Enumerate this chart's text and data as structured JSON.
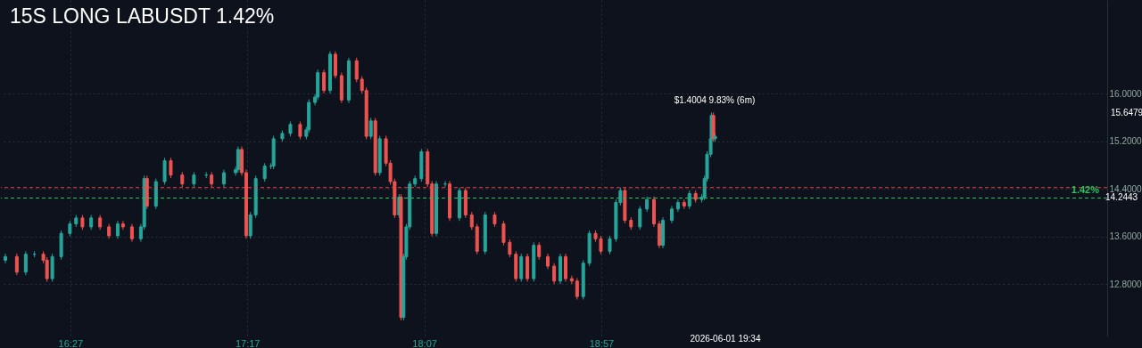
{
  "chart_data": {
    "type": "candlestick",
    "title": "15S LONG LABUSDT 1.42%",
    "x": [
      16.144,
      16.198,
      16.24,
      16.281,
      16.323,
      16.34,
      16.365,
      16.407,
      16.448,
      16.477,
      16.507,
      16.548,
      16.59,
      16.632,
      16.673,
      16.698,
      16.74,
      16.782,
      16.798,
      16.811,
      16.853,
      16.894,
      16.923,
      16.977,
      17.032,
      17.09,
      17.115,
      17.173,
      17.228,
      17.24,
      17.257,
      17.278,
      17.298,
      17.323,
      17.365,
      17.394,
      17.407,
      17.448,
      17.486,
      17.532,
      17.561,
      17.573,
      17.602,
      17.615,
      17.644,
      17.673,
      17.698,
      17.727,
      17.761,
      17.798,
      17.823,
      17.844,
      17.865,
      17.886,
      17.907,
      17.936,
      17.957,
      17.977,
      17.998,
      18.007,
      18.019,
      18.032,
      18.048,
      18.073,
      18.103,
      18.132,
      18.153,
      18.173,
      18.215,
      18.236,
      18.282,
      18.311,
      18.34,
      18.365,
      18.403,
      18.448,
      18.49,
      18.519,
      18.548,
      18.573,
      18.602,
      18.632,
      18.657,
      18.698,
      18.728,
      18.757,
      18.782,
      18.811,
      18.836,
      18.865,
      18.894,
      18.923,
      18.948,
      18.99,
      19.019,
      19.04,
      19.061,
      19.09,
      19.132,
      19.165,
      19.198,
      19.223,
      19.24,
      19.282,
      19.311,
      19.34,
      19.365,
      19.394,
      19.423,
      19.436,
      19.448,
      19.465,
      19.469,
      19.478,
      19.486
    ],
    "ohlc": [
      [
        13.2,
        13.31,
        13.15,
        13.26
      ],
      [
        13.26,
        13.31,
        12.95,
        13.0
      ],
      [
        13.0,
        13.35,
        12.95,
        13.3
      ],
      [
        13.3,
        13.35,
        13.25,
        13.3
      ],
      [
        13.3,
        13.35,
        13.15,
        13.2
      ],
      [
        13.2,
        13.25,
        12.84,
        12.89
      ],
      [
        12.89,
        13.31,
        12.84,
        13.26
      ],
      [
        13.26,
        13.7,
        13.21,
        13.65
      ],
      [
        13.65,
        13.86,
        13.6,
        13.81
      ],
      [
        13.81,
        13.96,
        13.76,
        13.91
      ],
      [
        13.91,
        13.96,
        13.71,
        13.76
      ],
      [
        13.76,
        13.96,
        13.71,
        13.91
      ],
      [
        13.91,
        13.96,
        13.71,
        13.76
      ],
      [
        13.76,
        13.81,
        13.56,
        13.61
      ],
      [
        13.61,
        13.86,
        13.56,
        13.81
      ],
      [
        13.81,
        13.86,
        13.71,
        13.76
      ],
      [
        13.76,
        13.81,
        13.51,
        13.56
      ],
      [
        13.56,
        13.81,
        13.51,
        13.76
      ],
      [
        13.76,
        14.62,
        13.71,
        14.57
      ],
      [
        14.57,
        14.62,
        14.06,
        14.11
      ],
      [
        14.11,
        14.57,
        14.06,
        14.52
      ],
      [
        14.52,
        14.92,
        14.47,
        14.87
      ],
      [
        14.87,
        14.92,
        14.58,
        14.63
      ],
      [
        14.63,
        14.68,
        14.43,
        14.48
      ],
      [
        14.48,
        14.68,
        14.43,
        14.63
      ],
      [
        14.63,
        14.68,
        14.58,
        14.63
      ],
      [
        14.63,
        14.68,
        14.43,
        14.48
      ],
      [
        14.48,
        14.72,
        14.43,
        14.67
      ],
      [
        14.67,
        14.77,
        14.62,
        14.72
      ],
      [
        14.72,
        15.11,
        14.67,
        15.06
      ],
      [
        15.06,
        15.11,
        14.62,
        14.67
      ],
      [
        14.67,
        14.72,
        13.56,
        13.61
      ],
      [
        13.61,
        14.01,
        13.56,
        13.96
      ],
      [
        13.96,
        14.62,
        13.91,
        14.57
      ],
      [
        14.57,
        14.83,
        14.52,
        14.78
      ],
      [
        14.78,
        14.83,
        14.73,
        14.78
      ],
      [
        14.78,
        15.29,
        14.73,
        15.24
      ],
      [
        15.24,
        15.38,
        15.19,
        15.33
      ],
      [
        15.33,
        15.53,
        15.28,
        15.48
      ],
      [
        15.48,
        15.53,
        15.23,
        15.28
      ],
      [
        15.28,
        15.44,
        15.23,
        15.39
      ],
      [
        15.39,
        15.9,
        15.34,
        15.85
      ],
      [
        15.85,
        15.99,
        15.8,
        15.94
      ],
      [
        15.94,
        16.4,
        15.89,
        16.35
      ],
      [
        16.35,
        16.4,
        16.0,
        16.05
      ],
      [
        16.05,
        16.71,
        16.0,
        16.66
      ],
      [
        16.66,
        16.71,
        16.25,
        16.3
      ],
      [
        16.3,
        16.35,
        15.84,
        15.89
      ],
      [
        15.89,
        16.6,
        15.84,
        16.55
      ],
      [
        16.55,
        16.6,
        16.19,
        16.24
      ],
      [
        16.24,
        16.29,
        16.0,
        16.05
      ],
      [
        16.05,
        16.1,
        15.23,
        15.28
      ],
      [
        15.28,
        15.59,
        15.23,
        15.54
      ],
      [
        15.54,
        15.59,
        14.62,
        14.67
      ],
      [
        14.67,
        15.29,
        14.62,
        15.24
      ],
      [
        15.24,
        15.29,
        14.78,
        14.83
      ],
      [
        14.83,
        14.88,
        14.47,
        14.52
      ],
      [
        14.52,
        14.57,
        13.91,
        13.96
      ],
      [
        13.96,
        14.31,
        13.91,
        14.26
      ],
      [
        14.26,
        14.31,
        12.19,
        12.24
      ],
      [
        12.24,
        13.31,
        12.19,
        13.26
      ],
      [
        13.26,
        13.81,
        13.21,
        13.76
      ],
      [
        13.76,
        14.53,
        13.71,
        14.48
      ],
      [
        14.48,
        14.62,
        14.43,
        14.57
      ],
      [
        14.57,
        15.07,
        14.52,
        15.02
      ],
      [
        15.02,
        15.07,
        14.43,
        14.48
      ],
      [
        14.48,
        14.53,
        13.6,
        13.65
      ],
      [
        13.65,
        14.53,
        13.6,
        14.48
      ],
      [
        14.48,
        14.53,
        14.43,
        14.48
      ],
      [
        14.48,
        14.53,
        13.86,
        13.91
      ],
      [
        13.91,
        14.42,
        13.86,
        14.37
      ],
      [
        14.37,
        14.42,
        13.91,
        13.96
      ],
      [
        13.96,
        14.01,
        13.71,
        13.76
      ],
      [
        13.76,
        13.81,
        13.3,
        13.35
      ],
      [
        13.35,
        14.01,
        13.3,
        13.96
      ],
      [
        13.96,
        14.01,
        13.76,
        13.81
      ],
      [
        13.81,
        13.86,
        13.45,
        13.5
      ],
      [
        13.5,
        13.55,
        13.25,
        13.3
      ],
      [
        13.3,
        13.35,
        12.84,
        12.89
      ],
      [
        12.89,
        13.31,
        12.84,
        13.26
      ],
      [
        13.26,
        13.31,
        12.84,
        12.89
      ],
      [
        12.89,
        13.5,
        12.84,
        13.45
      ],
      [
        13.45,
        13.5,
        13.21,
        13.26
      ],
      [
        13.26,
        13.31,
        13.05,
        13.1
      ],
      [
        13.1,
        13.15,
        12.8,
        12.85
      ],
      [
        12.85,
        13.31,
        12.8,
        13.26
      ],
      [
        13.26,
        13.31,
        12.84,
        12.89
      ],
      [
        12.89,
        12.94,
        12.8,
        12.85
      ],
      [
        12.85,
        12.9,
        12.54,
        12.59
      ],
      [
        12.59,
        13.2,
        12.54,
        13.15
      ],
      [
        13.15,
        13.7,
        13.1,
        13.65
      ],
      [
        13.65,
        13.7,
        13.51,
        13.56
      ],
      [
        13.56,
        13.61,
        13.3,
        13.35
      ],
      [
        13.35,
        13.61,
        13.3,
        13.56
      ],
      [
        13.56,
        14.22,
        13.51,
        14.17
      ],
      [
        14.17,
        14.42,
        14.12,
        14.37
      ],
      [
        14.37,
        14.42,
        13.82,
        13.87
      ],
      [
        13.87,
        13.92,
        13.71,
        13.76
      ],
      [
        13.76,
        14.11,
        13.71,
        14.06
      ],
      [
        14.06,
        14.27,
        14.01,
        14.22
      ],
      [
        14.22,
        14.27,
        13.76,
        13.81
      ],
      [
        13.81,
        13.86,
        13.4,
        13.45
      ],
      [
        13.45,
        13.92,
        13.4,
        13.87
      ],
      [
        13.87,
        14.11,
        13.82,
        14.06
      ],
      [
        14.06,
        14.22,
        14.01,
        14.17
      ],
      [
        14.17,
        14.22,
        14.06,
        14.11
      ],
      [
        14.11,
        14.37,
        14.06,
        14.32
      ],
      [
        14.32,
        14.37,
        14.17,
        14.22
      ],
      [
        14.22,
        14.31,
        14.17,
        14.26
      ],
      [
        14.26,
        14.62,
        14.21,
        14.57
      ],
      [
        14.57,
        15.03,
        14.52,
        14.98
      ],
      [
        14.98,
        15.29,
        14.93,
        15.24
      ],
      [
        15.24,
        15.68,
        15.19,
        15.63
      ],
      [
        15.63,
        15.68,
        15.19,
        15.24
      ],
      [
        15.24,
        15.33,
        15.19,
        15.28
      ]
    ],
    "xlim": [
      16.144,
      21.311
    ],
    "xticks": [
      {
        "value": 16.45,
        "label": "16:27"
      },
      {
        "value": 17.2833,
        "label": "17:17"
      },
      {
        "value": 18.1167,
        "label": "18:07"
      },
      {
        "value": 18.95,
        "label": "18:57"
      }
    ],
    "ylim": [
      11.92,
      17.57
    ],
    "yticks": [
      {
        "value": 12.8,
        "label": "12.8000"
      },
      {
        "value": 13.6,
        "label": "13.6000"
      },
      {
        "value": 14.4,
        "label": "14.4000"
      },
      {
        "value": 15.2,
        "label": "15.2000"
      },
      {
        "value": 16.0,
        "label": "16.0000"
      }
    ],
    "grid": true,
    "ref_lines": [
      {
        "axis": "y",
        "value": 14.42,
        "color": "#ef4444",
        "line_style": "dashed"
      },
      {
        "axis": "y",
        "value": 14.2443,
        "color": "#22c55e",
        "line_style": "dashed"
      }
    ],
    "annotations": [
      "1.42%",
      "$1.4004 9.83% (6m)",
      "15.6479",
      "14.2443",
      "2026-06-01 19:34"
    ]
  }
}
